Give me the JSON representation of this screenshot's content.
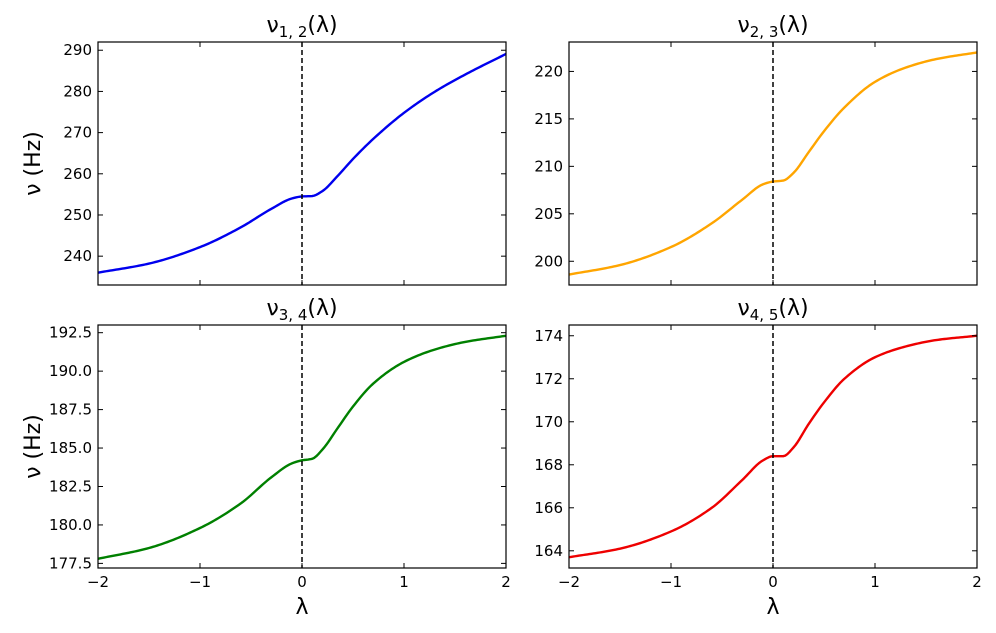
{
  "chart_data": [
    {
      "type": "line",
      "title": "ν_{1,2}(λ)",
      "title_base": "ν",
      "title_sub": "1, 2",
      "title_arg": "(λ)",
      "xlabel": "",
      "ylabel": "ν (Hz)",
      "xlim": [
        -2,
        2
      ],
      "ylim": [
        233,
        292
      ],
      "xticks": [
        -2,
        -1,
        0,
        1,
        2
      ],
      "xtick_labels_visible": false,
      "yticks": [
        240,
        250,
        260,
        270,
        280,
        290
      ],
      "ytick_labels": [
        "240",
        "250",
        "260",
        "270",
        "280",
        "290"
      ],
      "vline_x": 0,
      "color": "#0000ee",
      "x": [
        -2.0,
        -1.5,
        -1.0,
        -0.6,
        -0.3,
        -0.1,
        0.0,
        0.1,
        0.2,
        0.35,
        0.5,
        0.7,
        1.0,
        1.3,
        1.6,
        2.0
      ],
      "y": [
        236.0,
        238.2,
        242.2,
        247.0,
        251.5,
        254.0,
        254.5,
        254.6,
        255.8,
        259.5,
        263.6,
        268.5,
        274.8,
        279.9,
        284.1,
        289.1
      ]
    },
    {
      "type": "line",
      "title": "ν_{2,3}(λ)",
      "title_base": "ν",
      "title_sub": "2, 3",
      "title_arg": "(λ)",
      "xlabel": "",
      "ylabel": "",
      "xlim": [
        -2,
        2
      ],
      "ylim": [
        197.5,
        223.1
      ],
      "xticks": [
        -2,
        -1,
        0,
        1,
        2
      ],
      "xtick_labels_visible": false,
      "yticks": [
        200,
        205,
        210,
        215,
        220
      ],
      "ytick_labels": [
        "200",
        "205",
        "210",
        "215",
        "220"
      ],
      "vline_x": 0,
      "color": "#ffa500",
      "x": [
        -2.0,
        -1.5,
        -1.0,
        -0.6,
        -0.3,
        -0.1,
        0.0,
        0.1,
        0.2,
        0.35,
        0.5,
        0.7,
        1.0,
        1.3,
        1.6,
        2.0
      ],
      "y": [
        198.6,
        199.6,
        201.5,
        204.0,
        206.5,
        208.1,
        208.4,
        208.5,
        209.3,
        211.5,
        213.7,
        216.2,
        218.9,
        220.4,
        221.3,
        222.0
      ]
    },
    {
      "type": "line",
      "title": "ν_{3,4}(λ)",
      "title_base": "ν",
      "title_sub": "3, 4",
      "title_arg": "(λ)",
      "xlabel": "λ",
      "ylabel": "ν (Hz)",
      "xlim": [
        -2,
        2
      ],
      "ylim": [
        177.2,
        193.0
      ],
      "xticks": [
        -2,
        -1,
        0,
        1,
        2
      ],
      "xtick_labels": [
        "−2",
        "−1",
        "0",
        "1",
        "2"
      ],
      "yticks": [
        177.5,
        180.0,
        182.5,
        185.0,
        187.5,
        190.0,
        192.5
      ],
      "ytick_labels": [
        "177.5",
        "180.0",
        "182.5",
        "185.0",
        "187.5",
        "190.0",
        "192.5"
      ],
      "vline_x": 0,
      "color": "#008000",
      "x": [
        -2.0,
        -1.5,
        -1.0,
        -0.6,
        -0.3,
        -0.1,
        0.0,
        0.1,
        0.2,
        0.35,
        0.5,
        0.7,
        1.0,
        1.3,
        1.6,
        2.0
      ],
      "y": [
        177.8,
        178.5,
        179.8,
        181.4,
        183.1,
        184.0,
        184.2,
        184.3,
        184.9,
        186.3,
        187.7,
        189.2,
        190.6,
        191.4,
        191.9,
        192.3
      ]
    },
    {
      "type": "line",
      "title": "ν_{4,5}(λ)",
      "title_base": "ν",
      "title_sub": "4, 5",
      "title_arg": "(λ)",
      "xlabel": "λ",
      "ylabel": "",
      "xlim": [
        -2,
        2
      ],
      "ylim": [
        163.2,
        174.5
      ],
      "xticks": [
        -2,
        -1,
        0,
        1,
        2
      ],
      "xtick_labels": [
        "−2",
        "−1",
        "0",
        "1",
        "2"
      ],
      "yticks": [
        164,
        166,
        168,
        170,
        172,
        174
      ],
      "ytick_labels": [
        "164",
        "166",
        "168",
        "170",
        "172",
        "174"
      ],
      "vline_x": 0,
      "color": "#ee0000",
      "x": [
        -2.0,
        -1.5,
        -1.0,
        -0.6,
        -0.3,
        -0.1,
        0.0,
        0.1,
        0.2,
        0.35,
        0.5,
        0.7,
        1.0,
        1.3,
        1.6,
        2.0
      ],
      "y": [
        163.7,
        164.1,
        164.9,
        166.0,
        167.3,
        168.2,
        168.4,
        168.4,
        168.8,
        169.9,
        170.9,
        172.0,
        173.0,
        173.5,
        173.8,
        174.0
      ]
    }
  ]
}
